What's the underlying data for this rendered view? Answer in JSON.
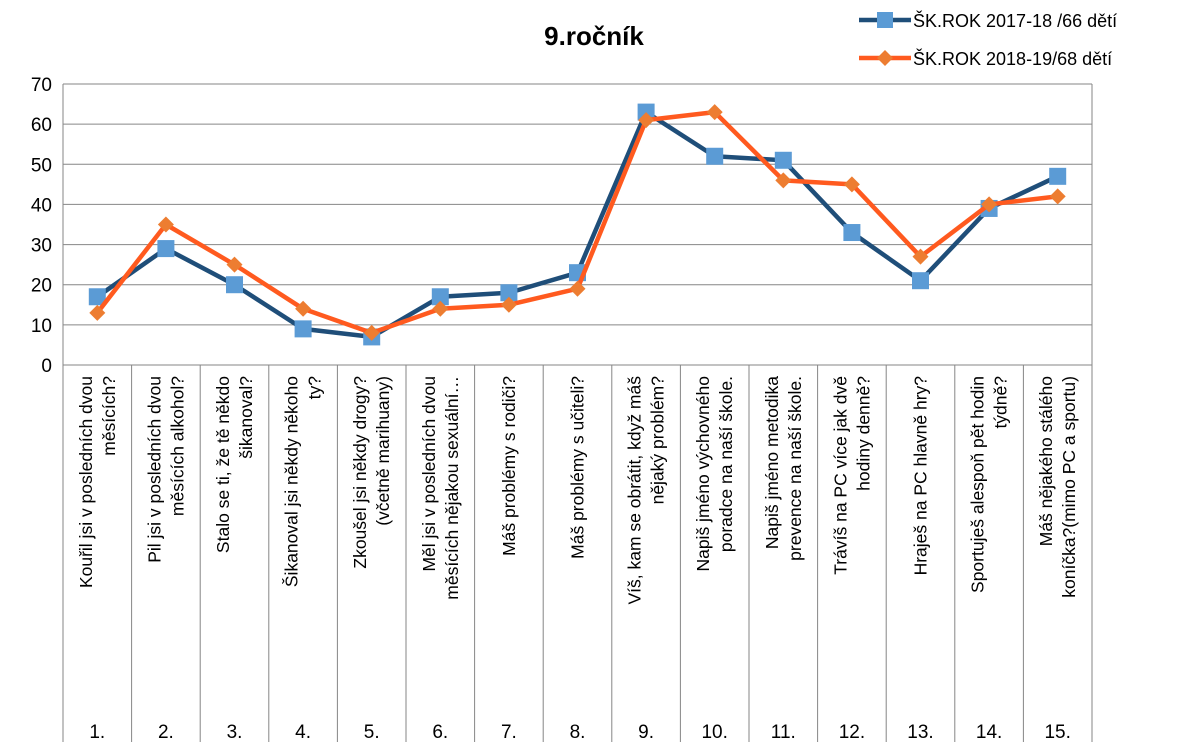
{
  "chart_data": {
    "type": "line",
    "title": "9.ročník",
    "ylim": [
      0,
      70
    ],
    "yticks": [
      "0",
      "10",
      "20",
      "30",
      "40",
      "50",
      "60",
      "70"
    ],
    "grid": true,
    "legend_position": "top-right",
    "categories": [
      {
        "num": "1.",
        "label": [
          "Kouřil jsi v posledních dvou",
          "měsících?"
        ]
      },
      {
        "num": "2.",
        "label": [
          "Pil jsi v posledních dvou",
          "měsících alkohol?"
        ]
      },
      {
        "num": "3.",
        "label": [
          "Stalo se ti, že tě někdo",
          "šikanoval?"
        ]
      },
      {
        "num": "4.",
        "label": [
          "Šikanoval jsi někdy někoho",
          "ty?"
        ]
      },
      {
        "num": "5.",
        "label": [
          "Zkoušel jsi někdy drogy?",
          "(včetně marihuany)"
        ]
      },
      {
        "num": "6.",
        "label": [
          "Měl jsi v posledních dvou",
          "měsících nějakou sexuální…"
        ]
      },
      {
        "num": "7.",
        "label": [
          "Máš problémy s rodiči?"
        ]
      },
      {
        "num": "8.",
        "label": [
          "Máš problémy s učiteli?"
        ]
      },
      {
        "num": "9.",
        "label": [
          "Víš, kam se obrátit, když máš",
          "nějaký problém?"
        ]
      },
      {
        "num": "10.",
        "label": [
          "Napiš jméno výchovného",
          "poradce na naší škole."
        ]
      },
      {
        "num": "11.",
        "label": [
          "Napiš jméno metodika",
          "prevence na naší škole."
        ]
      },
      {
        "num": "12.",
        "label": [
          "Trávíš na PC více jak dvě",
          "hodiny denně?"
        ]
      },
      {
        "num": "13.",
        "label": [
          "Hraješ na PC hlavně hry?"
        ]
      },
      {
        "num": "14.",
        "label": [
          "Sportuješ alespoň pět hodin",
          "týdně?"
        ]
      },
      {
        "num": "15.",
        "label": [
          "Máš nějakého stálého",
          "koníčka?(mimo PC a sportu)"
        ]
      }
    ],
    "series": [
      {
        "name": "ŠK.ROK 2017-18 /66 dětí",
        "color": "#1F4E79",
        "marker_color": "#5B9BD5",
        "marker": "square",
        "values": [
          17,
          29,
          20,
          9,
          7,
          17,
          18,
          23,
          63,
          52,
          51,
          33,
          21,
          39,
          47
        ]
      },
      {
        "name": "ŠK.ROK 2018-19/68 dětí",
        "color": "#FF5A1F",
        "marker_color": "#ED7D31",
        "marker": "diamond",
        "values": [
          13,
          35,
          25,
          14,
          8,
          14,
          15,
          19,
          61,
          63,
          46,
          45,
          27,
          40,
          42
        ]
      }
    ]
  }
}
